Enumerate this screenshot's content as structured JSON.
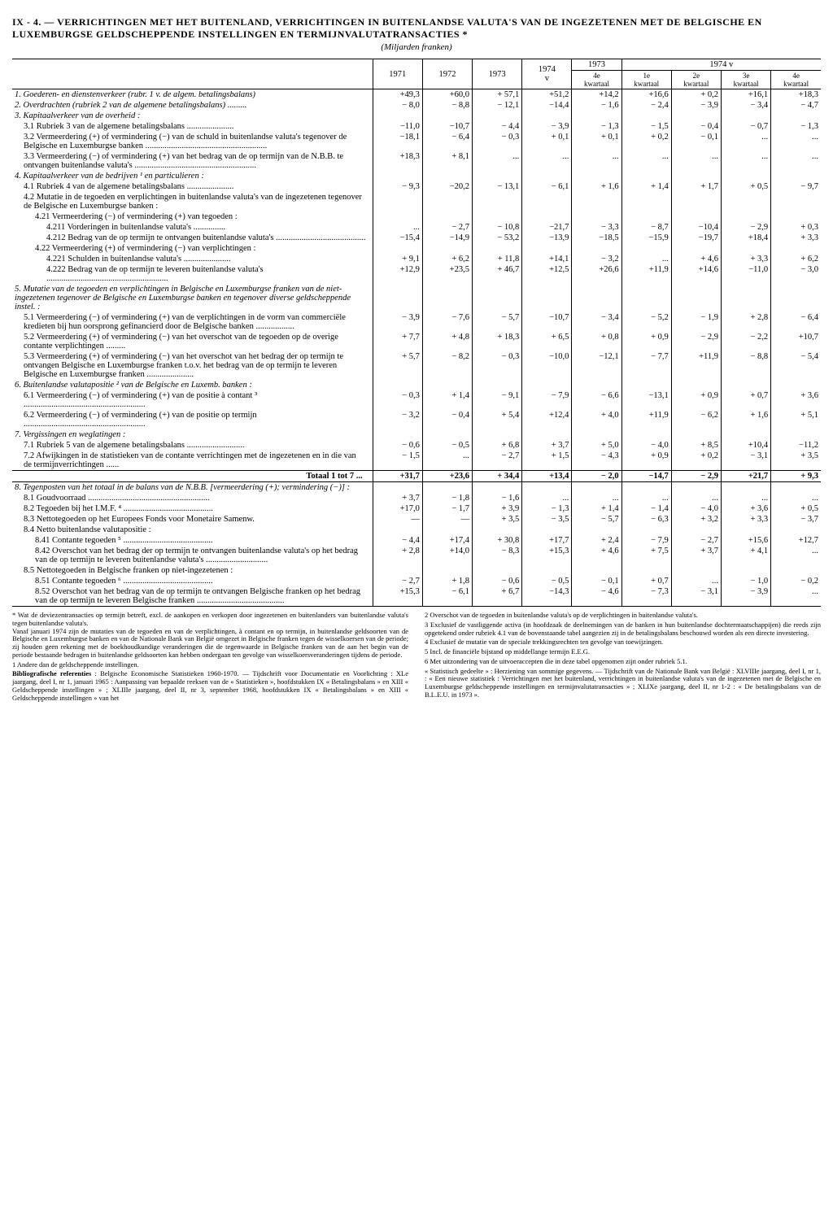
{
  "title": "IX - 4. — VERRICHTINGEN MET HET BUITENLAND, VERRICHTINGEN IN BUITENLANDSE VALUTA'S VAN DE INGEZETENEN MET DE BELGISCHE EN LUXEMBURGSE GELDSCHEPPENDE INSTELLINGEN EN TERMIJNVALUTATRANSACTIES *",
  "subtitle": "(Miljarden franken)",
  "headers": {
    "y1971": "1971",
    "y1972": "1972",
    "y1973": "1973",
    "y1974v": "1974\nv",
    "g1973": "1973",
    "g1974v": "1974 v",
    "q4e": "4e\nkwartaal",
    "q1e": "1e\nkwartaal",
    "q2e": "2e\nkwartaal",
    "q3e": "3e\nkwartaal",
    "q4e2": "4e\nkwartaal"
  },
  "rows": [
    {
      "l": "1. Goederen- en dienstenverkeer (rubr. 1 v. de algem. betalingsbalans)",
      "v": [
        "+49,3",
        "+60,0",
        "+ 57,1",
        "+51,2",
        "+14,2",
        "+16,6",
        "+ 0,2",
        "+16,1",
        "+18,3"
      ],
      "i": 0,
      "s": true
    },
    {
      "l": "2. Overdrachten (rubriek 2 van de algemene betalingsbalans) .........",
      "v": [
        "− 8,0",
        "− 8,8",
        "− 12,1",
        "−14,4",
        "− 1,6",
        "− 2,4",
        "− 3,9",
        "− 3,4",
        "− 4,7"
      ],
      "i": 0,
      "s": true
    },
    {
      "l": "3. Kapitaalverkeer van de overheid :",
      "v": [
        "",
        "",
        "",
        "",
        "",
        "",
        "",
        "",
        ""
      ],
      "i": 0,
      "s": true
    },
    {
      "l": "3.1 Rubriek 3 van de algemene betalingsbalans ......................",
      "v": [
        "−11,0",
        "−10,7",
        "− 4,4",
        "− 3,9",
        "− 1,3",
        "− 1,5",
        "− 0,4",
        "− 0,7",
        "− 1,3"
      ],
      "i": 1
    },
    {
      "l": "3.2 Vermeerdering (+) of vermindering (−) van de schuld in buitenlandse valuta's tegenover de Belgische en Luxemburgse banken .........................................................",
      "v": [
        "−18,1",
        "− 6,4",
        "− 0,3",
        "+ 0,1",
        "+ 0,1",
        "+ 0,2",
        "− 0,1",
        "...",
        "..."
      ],
      "i": 1
    },
    {
      "l": "3.3 Vermeerdering (−) of vermindering (+) van het bedrag van de op termijn van de N.B.B. te ontvangen buitenlandse valuta's .........................................................",
      "v": [
        "+18,3",
        "+ 8,1",
        "...",
        "...",
        "...",
        "...",
        "...",
        "...",
        "..."
      ],
      "i": 1
    },
    {
      "l": "4. Kapitaalverkeer van de bedrijven ¹ en particulieren :",
      "v": [
        "",
        "",
        "",
        "",
        "",
        "",
        "",
        "",
        ""
      ],
      "i": 0,
      "s": true
    },
    {
      "l": "4.1 Rubriek 4 van de algemene betalingsbalans ......................",
      "v": [
        "− 9,3",
        "−20,2",
        "− 13,1",
        "− 6,1",
        "+ 1,6",
        "+ 1,4",
        "+ 1,7",
        "+ 0,5",
        "− 9,7"
      ],
      "i": 1
    },
    {
      "l": "4.2 Mutatie in de tegoeden en verplichtingen in buitenlandse valuta's van de ingezetenen tegenover de Belgische en Luxemburgse banken :",
      "v": [
        "",
        "",
        "",
        "",
        "",
        "",
        "",
        "",
        ""
      ],
      "i": 1
    },
    {
      "l": "4.21 Vermeerdering (−) of vermindering (+) van tegoeden :",
      "v": [
        "",
        "",
        "",
        "",
        "",
        "",
        "",
        "",
        ""
      ],
      "i": 2
    },
    {
      "l": "4.211 Vorderingen in buitenlandse valuta's ...............",
      "v": [
        "...",
        "− 2,7",
        "− 10,8",
        "−21,7",
        "− 3,3",
        "− 8,7",
        "−10,4",
        "− 2,9",
        "+ 0,3"
      ],
      "i": 3
    },
    {
      "l": "4.212 Bedrag van de op termijn te ontvangen buitenlandse valuta's ..........................................",
      "v": [
        "−15,4",
        "−14,9",
        "− 53,2",
        "−13,9",
        "−18,5",
        "−15,9",
        "−19,7",
        "+18,4",
        "+ 3,3"
      ],
      "i": 3
    },
    {
      "l": "4.22 Vermeerdering (+) of vermindering (−) van verplichtingen :",
      "v": [
        "",
        "",
        "",
        "",
        "",
        "",
        "",
        "",
        ""
      ],
      "i": 2
    },
    {
      "l": "4.221 Schulden in buitenlandse valuta's ......................",
      "v": [
        "+ 9,1",
        "+ 6,2",
        "+ 11,8",
        "+14,1",
        "− 3,2",
        "...",
        "+ 4,6",
        "+ 3,3",
        "+ 6,2"
      ],
      "i": 3
    },
    {
      "l": "4.222 Bedrag van de op termijn te leveren buitenlandse valuta's .........................................................",
      "v": [
        "+12,9",
        "+23,5",
        "+ 46,7",
        "+12,5",
        "+26,6",
        "+11,9",
        "+14,6",
        "−11,0",
        "− 3,0"
      ],
      "i": 3
    },
    {
      "l": "5. Mutatie van de tegoeden en verplichtingen in Belgische en Luxemburgse franken van de niet-ingezetenen tegenover de Belgische en Luxemburgse banken en tegenover diverse geldscheppende instel. :",
      "v": [
        "",
        "",
        "",
        "",
        "",
        "",
        "",
        "",
        ""
      ],
      "i": 0,
      "s": true
    },
    {
      "l": "5.1 Vermeerdering (−) of vermindering (+) van de verplichtingen in de vorm van commerciële kredieten bij hun oorsprong gefinancierd door de Belgische banken ..................",
      "v": [
        "− 3,9",
        "− 7,6",
        "− 5,7",
        "−10,7",
        "− 3,4",
        "− 5,2",
        "− 1,9",
        "+ 2,8",
        "− 6,4"
      ],
      "i": 1
    },
    {
      "l": "5.2 Vermeerdering (+) of vermindering (−) van het overschot van de tegoeden op de overige contante verplichtingen .........",
      "v": [
        "+ 7,7",
        "+ 4,8",
        "+ 18,3",
        "+ 6,5",
        "+ 0,8",
        "+ 0,9",
        "− 2,9",
        "− 2,2",
        "+10,7"
      ],
      "i": 1
    },
    {
      "l": "5.3 Vermeerdering (+) of vermindering (−) van het overschot van het bedrag der op termijn te ontvangen Belgische en Luxemburgse franken t.o.v. het bedrag van de op termijn te leveren Belgische en Luxemburgse franken ......................",
      "v": [
        "+ 5,7",
        "− 8,2",
        "− 0,3",
        "−10,0",
        "−12,1",
        "− 7,7",
        "+11,9",
        "− 8,8",
        "− 5,4"
      ],
      "i": 1
    },
    {
      "l": "6. Buitenlandse valutapositie ² van de Belgische en Luxemb. banken :",
      "v": [
        "",
        "",
        "",
        "",
        "",
        "",
        "",
        "",
        ""
      ],
      "i": 0,
      "s": true
    },
    {
      "l": "6.1 Vermeerdering (−) of vermindering (+) van de positie à contant ³ .........................................................",
      "v": [
        "− 0,3",
        "+ 1,4",
        "− 9,1",
        "− 7,9",
        "− 6,6",
        "−13,1",
        "+ 0,9",
        "+ 0,7",
        "+ 3,6"
      ],
      "i": 1
    },
    {
      "l": "6.2 Vermeerdering (−) of vermindering (+) van de positie op termijn .........................................................",
      "v": [
        "− 3,2",
        "− 0,4",
        "+ 5,4",
        "+12,4",
        "+ 4,0",
        "+11,9",
        "− 6,2",
        "+ 1,6",
        "+ 5,1"
      ],
      "i": 1
    },
    {
      "l": "7. Vergissingen en weglatingen :",
      "v": [
        "",
        "",
        "",
        "",
        "",
        "",
        "",
        "",
        ""
      ],
      "i": 0,
      "s": true
    },
    {
      "l": "7.1 Rubriek 5 van de algemene betalingsbalans ...........................",
      "v": [
        "− 0,6",
        "− 0,5",
        "+ 6,8",
        "+ 3,7",
        "+ 5,0",
        "− 4,0",
        "+ 8,5",
        "+10,4",
        "−11,2"
      ],
      "i": 1
    },
    {
      "l": "7.2 Afwijkingen in de statistieken van de contante verrichtingen met de ingezetenen en in die van de termijnverrichtingen ......",
      "v": [
        "− 1,5",
        "...",
        "− 2,7",
        "+ 1,5",
        "− 4,3",
        "+ 0,9",
        "+ 0,2",
        "− 3,1",
        "+ 3,5"
      ],
      "i": 1
    },
    {
      "l": "Totaal 1 tot 7 ...",
      "v": [
        "+31,7",
        "+23,6",
        "+ 34,4",
        "+13,4",
        "− 2,0",
        "−14,7",
        "− 2,9",
        "+21,7",
        "+ 9,3"
      ],
      "i": 0,
      "tot": true,
      "bold": true
    },
    {
      "l": "8. Tegenposten van het totaal in de balans van de N.B.B. [vermeerdering (+); vermindering (−)] :",
      "v": [
        "",
        "",
        "",
        "",
        "",
        "",
        "",
        "",
        ""
      ],
      "i": 0,
      "s": true
    },
    {
      "l": "8.1 Goudvoorraad .........................................................",
      "v": [
        "+ 3,7",
        "− 1,8",
        "− 1,6",
        "...",
        "...",
        "...",
        "...",
        "...",
        "..."
      ],
      "i": 1
    },
    {
      "l": "8.2 Tegoeden bij het I.M.F. ⁴ ..........................................",
      "v": [
        "+17,0",
        "− 1,7",
        "+ 3,9",
        "− 1,3",
        "+ 1,4",
        "− 1,4",
        "− 4,0",
        "+ 3,6",
        "+ 0,5"
      ],
      "i": 1
    },
    {
      "l": "8.3 Nettotegoeden op het Europees Fonds voor Monetaire Samenw.",
      "v": [
        "—",
        "—",
        "+ 3,5",
        "− 3,5",
        "− 5,7",
        "− 6,3",
        "+ 3,2",
        "+ 3,3",
        "− 3,7"
      ],
      "i": 1
    },
    {
      "l": "8.4 Netto buitenlandse valutapositie :",
      "v": [
        "",
        "",
        "",
        "",
        "",
        "",
        "",
        "",
        ""
      ],
      "i": 1
    },
    {
      "l": "8.41 Contante tegoeden ⁵ ..........................................",
      "v": [
        "− 4,4",
        "+17,4",
        "+ 30,8",
        "+17,7",
        "+ 2,4",
        "− 7,9",
        "− 2,7",
        "+15,6",
        "+12,7"
      ],
      "i": 2
    },
    {
      "l": "8.42 Overschot van het bedrag der op termijn te ontvangen buitenlandse valuta's op het bedrag van de op termijn te leveren buitenlandse valuta's .............................",
      "v": [
        "+ 2,8",
        "+14,0",
        "− 8,3",
        "+15,3",
        "+ 4,6",
        "+ 7,5",
        "+ 3,7",
        "+ 4,1",
        "..."
      ],
      "i": 2
    },
    {
      "l": "8.5 Nettotegoeden in Belgische franken op niet-ingezetenen :",
      "v": [
        "",
        "",
        "",
        "",
        "",
        "",
        "",
        "",
        ""
      ],
      "i": 1
    },
    {
      "l": "8.51 Contante tegoeden ⁶ ..........................................",
      "v": [
        "− 2,7",
        "+ 1,8",
        "− 0,6",
        "− 0,5",
        "− 0,1",
        "+ 0,7",
        "...",
        "− 1,0",
        "− 0,2"
      ],
      "i": 2
    },
    {
      "l": "8.52 Overschot van het bedrag van de op termijn te ontvangen Belgische franken op het bedrag van de op termijn te leveren Belgische franken .........................................",
      "v": [
        "+15,3",
        "− 6,1",
        "+ 6,7",
        "−14,3",
        "− 4,6",
        "− 7,3",
        "− 3,1",
        "− 3,9",
        "..."
      ],
      "i": 2
    }
  ],
  "footnotes": {
    "star": "* Wat de deviezentransacties op termijn betreft, excl. de aankopen en verkopen door ingezetenen en buitenlanders van buitenlandse valuta's tegen buitenlandse valuta's.\nVanaf januari 1974 zijn de mutaties van de tegoeden en van de verplichtingen, à contant en op termijn, in buitenlandse geldsoorten van de Belgische en Luxemburgse banken en van de Nationale Bank van België omgezet in Belgische franken tegen de wisselkoersen van de periode; zij houden geen rekening met de boekhoudkundige veranderingen die de tegenwaarde in Belgische franken van de aan het begin van de periode bestaande bedragen in buitenlandse geldsoorten kan hebben ondergaan ten gevolge van wisselkoersveranderingen tijdens de periode.",
    "n1": "1 Andere dan de geldscheppende instellingen.",
    "biblio": "Bibliografische referenties : Belgische Economische Statistieken 1960-1970. — Tijdschrift voor Documentatie en Voorlichting : XLe jaargang, deel I, nr 1, januari 1965 : Aanpassing van bepaalde reeksen van de « Statistieken », hoofdstukken IX « Betalingsbalans » en XIII « Geldscheppende instellingen » ; XLIIIe jaargang, deel II, nr 3, september 1968, hoofdstukken IX « Betalingsbalans » en XIII « Geldscheppende instellingen » van het",
    "n2": "2 Overschot van de tegoeden in buitenlandse valuta's op de verplichtingen in buitenlandse valuta's.",
    "n3": "3 Exclusief de vastliggende activa (in hoofdzaak de deelnemingen van de banken in hun buitenlandse dochtermaatschappijen) die reeds zijn opgetekend onder rubriek 4.1 van de bovenstaande tabel aangezien zij in de betalingsbalans beschouwd worden als een directe investering.",
    "n4": "4 Exclusief de mutatie van de speciale trekkingsrechten ten gevolge van toewijzingen.",
    "n5": "5 Incl. de financiële bijstand op middellange termijn E.E.G.",
    "n6": "6 Met uitzondering van de uitvoeraccepten die in deze tabel opgenomen zijn onder rubriek 5.1.",
    "right_extra": "« Statistisch gedeelte » : Herziening van sommige gegevens. — Tijdschrift van de Nationale Bank van België : XLVIIIe jaargang, deel I, nr 1, : « Een nieuwe statistiek : Verrichtingen met het buitenland, verrichtingen in buitenlandse valuta's van de ingezetenen met de Belgische en Luxemburgse geldscheppende instellingen en termijnvalutatransacties » ; XLIXe jaargang, deel II, nr 1-2 : « De betalingsbalans van de B.L.E.U. in 1973 »."
  }
}
